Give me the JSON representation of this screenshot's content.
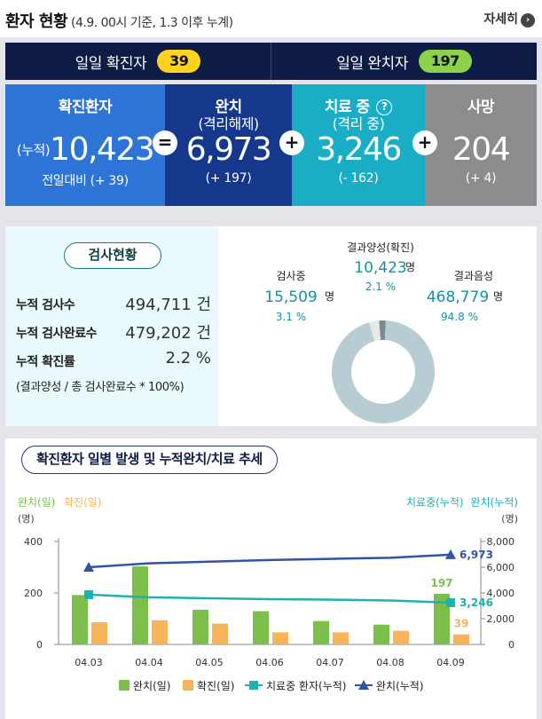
{
  "header": {
    "title": "환자 현황",
    "subtitle": "(4.9. 00시 기준, 1.3 이후 누계)",
    "more_label": "자세히",
    "more_arrow": "›"
  },
  "daily": {
    "confirmed_label": "일일 확진자",
    "confirmed_value": "39",
    "released_label": "일일 완치자",
    "released_value": "197"
  },
  "summary": {
    "confirmed": {
      "label": "확진환자",
      "prefix": "(누적)",
      "value": "10,423",
      "change": "전일대비 (+ 39)"
    },
    "released": {
      "label": "완치",
      "sub": "(격리해제)",
      "value": "6,973",
      "change": "(+ 197)"
    },
    "isolated": {
      "label": "치료 중",
      "help": "?",
      "sub": "(격리 중)",
      "value": "3,246",
      "change": "(- 162)"
    },
    "deceased": {
      "label": "사망",
      "value": "204",
      "change": "(+ 4)"
    },
    "ops": [
      "=",
      "+",
      "+"
    ]
  },
  "tests": {
    "badge": "검사현황",
    "rows": [
      {
        "label": "누적 검사수",
        "value": "494,711 건"
      },
      {
        "label": "누적 검사완료수",
        "value": "479,202 건"
      },
      {
        "label": "누적 확진률",
        "value": "2.2 %"
      }
    ],
    "note": "(결과양성 / 총 검사완료수 * 100%)"
  },
  "colors": {
    "navy": "#0d1b45",
    "confirmed": "#2d74d6",
    "released": "#15388c",
    "isolated": "#19aec6",
    "deceased": "#8a8c8e",
    "bar_release": "#7cc04b",
    "bar_confirm": "#f7b45a",
    "line_isolated": "#1fb0b0",
    "line_release": "#2f55a5",
    "donut_negative": "#b8cdd3",
    "donut_testing": "#e4e9ea",
    "donut_positive": "#7e8a8e"
  },
  "chart_data": [
    {
      "type": "pie",
      "slices": [
        {
          "label": "결과양성(확진)",
          "value": 10423,
          "unit": "명",
          "percent": "2.1 %"
        },
        {
          "label": "검사중",
          "value": 15509,
          "unit": "명",
          "percent": "3.1 %"
        },
        {
          "label": "결과음성",
          "value": 468779,
          "unit": "명",
          "percent": "94.8 %"
        }
      ]
    },
    {
      "type": "bar",
      "title": "확진환자 일별 발생 및 누적완치/치료 추세",
      "categories": [
        "04.03",
        "04.04",
        "04.05",
        "04.06",
        "04.07",
        "04.08",
        "04.09"
      ],
      "left_axis": {
        "label_release": "완치(일)",
        "label_confirm": "확진(일)",
        "unit": "(명)",
        "ylim": [
          0,
          400
        ],
        "ticks": [
          "0",
          "200",
          "400"
        ]
      },
      "right_axis": {
        "label_isolated": "치료중(누적)",
        "label_release": "완치(누적)",
        "unit": "(명)",
        "ylim": [
          0,
          8000
        ],
        "ticks": [
          "0",
          "2,000",
          "4,000",
          "6,000",
          "8,000"
        ]
      },
      "series": [
        {
          "name": "완치(일)",
          "kind": "bar",
          "axis": "left",
          "values": [
            192,
            303,
            135,
            129,
            91,
            77,
            197
          ]
        },
        {
          "name": "확진(일)",
          "kind": "bar",
          "axis": "left",
          "values": [
            86,
            94,
            81,
            47,
            47,
            53,
            39
          ]
        },
        {
          "name": "치료중 환자(누적)",
          "kind": "line",
          "axis": "right",
          "values": [
            3870,
            3660,
            3590,
            3520,
            3480,
            3410,
            3246
          ]
        },
        {
          "name": "완치(누적)",
          "kind": "line",
          "axis": "right",
          "values": [
            6000,
            6300,
            6430,
            6560,
            6650,
            6730,
            6973
          ]
        }
      ],
      "annotations": {
        "last_release_daily": "197",
        "last_confirm_daily": "39",
        "last_isolated": "3,246",
        "last_release_cum": "6,973"
      },
      "grid": false,
      "legend_position": "bottom"
    }
  ]
}
